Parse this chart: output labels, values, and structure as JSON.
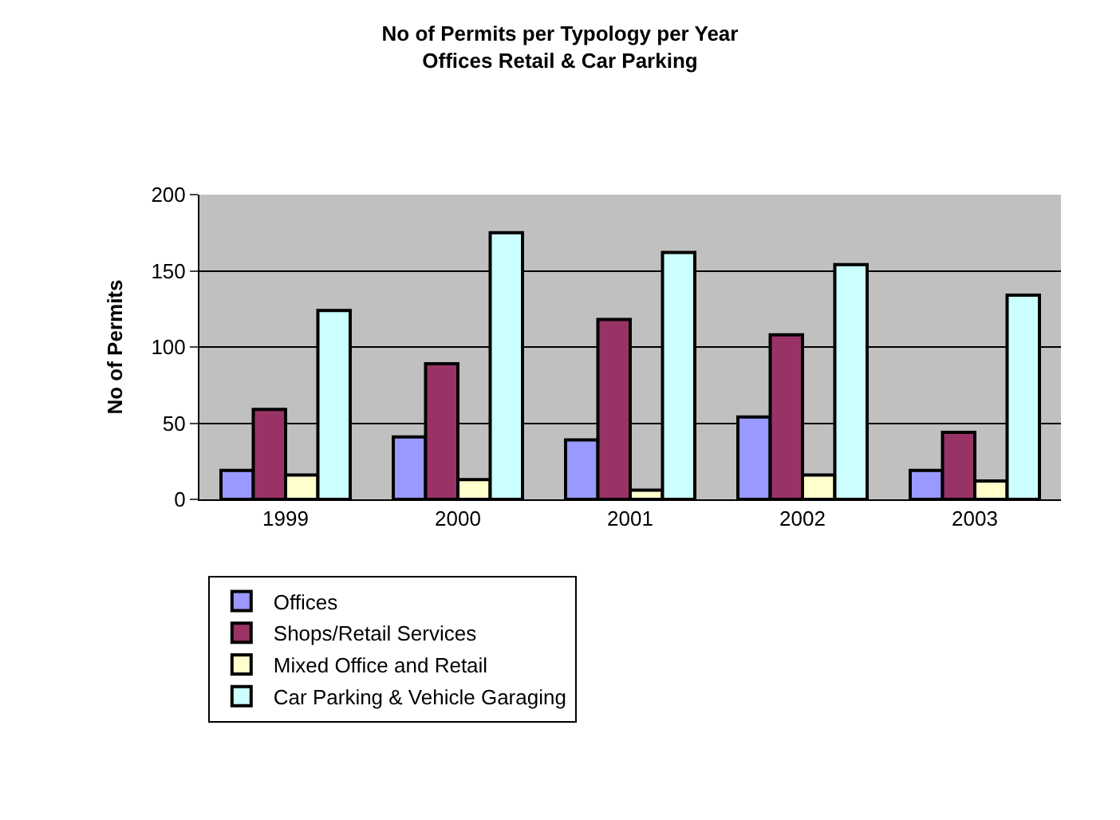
{
  "chart_data": {
    "type": "bar",
    "title": "No of Permits per Typology per Year\nOffices Retail & Car Parking",
    "ylabel": "No of Permits",
    "categories": [
      "1999",
      "2000",
      "2001",
      "2002",
      "2003"
    ],
    "series": [
      {
        "name": "Offices",
        "color": "#9999ff",
        "values": [
          19,
          41,
          39,
          54,
          19
        ]
      },
      {
        "name": "Shops/Retail Services",
        "color": "#993366",
        "values": [
          59,
          89,
          118,
          108,
          44
        ]
      },
      {
        "name": "Mixed Office and Retail",
        "color": "#ffffcc",
        "values": [
          16,
          13,
          6,
          16,
          12
        ]
      },
      {
        "name": "Car Parking & Vehicle Garaging",
        "color": "#ccffff",
        "values": [
          124,
          175,
          162,
          154,
          134
        ]
      }
    ],
    "ylim": [
      0,
      200
    ],
    "yticks": [
      0,
      50,
      100,
      150,
      200
    ],
    "grid": "y",
    "legend": "bottom"
  }
}
